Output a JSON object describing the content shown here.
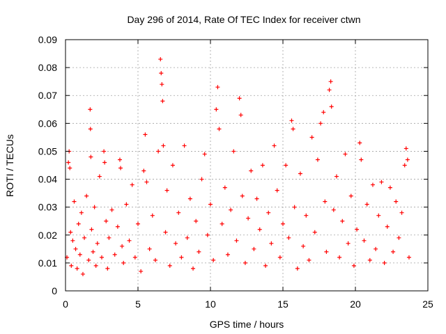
{
  "chart_data": {
    "type": "scatter",
    "title": "Day 296 of 2014, Rate Of TEC Index for receiver ctwn",
    "xlabel": "GPS time / hours",
    "ylabel": "ROTI / TECUs",
    "xlim": [
      0,
      25
    ],
    "ylim": [
      0,
      0.09
    ],
    "x_ticks": [
      0,
      5,
      10,
      15,
      20,
      25
    ],
    "x_tick_labels": [
      "0",
      "5",
      "10",
      "15",
      "20",
      "25"
    ],
    "y_ticks": [
      0,
      0.01,
      0.02,
      0.03,
      0.04,
      0.05,
      0.06,
      0.07,
      0.08,
      0.09
    ],
    "y_tick_labels": [
      "0",
      "0.01",
      "0.02",
      "0.03",
      "0.04",
      "0.05",
      "0.06",
      "0.07",
      "0.08",
      "0.09"
    ],
    "grid": true,
    "marker": "+",
    "color": "#ff0000",
    "series": [
      {
        "name": "ROTI",
        "points": [
          [
            0.1,
            0.012
          ],
          [
            0.2,
            0.046
          ],
          [
            0.25,
            0.05
          ],
          [
            0.3,
            0.044
          ],
          [
            0.35,
            0.021
          ],
          [
            0.4,
            0.009
          ],
          [
            0.5,
            0.018
          ],
          [
            0.6,
            0.032
          ],
          [
            0.7,
            0.015
          ],
          [
            0.8,
            0.008
          ],
          [
            0.9,
            0.024
          ],
          [
            1.0,
            0.013
          ],
          [
            1.1,
            0.028
          ],
          [
            1.2,
            0.006
          ],
          [
            1.3,
            0.019
          ],
          [
            1.45,
            0.034
          ],
          [
            1.6,
            0.011
          ],
          [
            1.7,
            0.065
          ],
          [
            1.72,
            0.058
          ],
          [
            1.75,
            0.048
          ],
          [
            1.8,
            0.022
          ],
          [
            1.9,
            0.014
          ],
          [
            2.0,
            0.03
          ],
          [
            2.1,
            0.009
          ],
          [
            2.2,
            0.017
          ],
          [
            2.35,
            0.041
          ],
          [
            2.5,
            0.012
          ],
          [
            2.65,
            0.05
          ],
          [
            2.7,
            0.046
          ],
          [
            2.8,
            0.025
          ],
          [
            2.9,
            0.008
          ],
          [
            3.0,
            0.019
          ],
          [
            3.2,
            0.029
          ],
          [
            3.4,
            0.013
          ],
          [
            3.6,
            0.023
          ],
          [
            3.75,
            0.047
          ],
          [
            3.8,
            0.044
          ],
          [
            3.9,
            0.016
          ],
          [
            4.0,
            0.01
          ],
          [
            4.2,
            0.031
          ],
          [
            4.4,
            0.018
          ],
          [
            4.6,
            0.038
          ],
          [
            4.8,
            0.012
          ],
          [
            5.0,
            0.024
          ],
          [
            5.2,
            0.007
          ],
          [
            5.4,
            0.043
          ],
          [
            5.5,
            0.056
          ],
          [
            5.6,
            0.039
          ],
          [
            5.8,
            0.015
          ],
          [
            6.0,
            0.027
          ],
          [
            6.2,
            0.011
          ],
          [
            6.4,
            0.05
          ],
          [
            6.55,
            0.083
          ],
          [
            6.6,
            0.078
          ],
          [
            6.65,
            0.074
          ],
          [
            6.7,
            0.068
          ],
          [
            6.75,
            0.052
          ],
          [
            6.9,
            0.021
          ],
          [
            7.0,
            0.036
          ],
          [
            7.2,
            0.009
          ],
          [
            7.4,
            0.045
          ],
          [
            7.6,
            0.017
          ],
          [
            7.8,
            0.028
          ],
          [
            8.0,
            0.012
          ],
          [
            8.2,
            0.052
          ],
          [
            8.4,
            0.019
          ],
          [
            8.6,
            0.033
          ],
          [
            8.8,
            0.008
          ],
          [
            9.0,
            0.025
          ],
          [
            9.2,
            0.014
          ],
          [
            9.4,
            0.04
          ],
          [
            9.6,
            0.049
          ],
          [
            9.8,
            0.02
          ],
          [
            10.0,
            0.031
          ],
          [
            10.2,
            0.011
          ],
          [
            10.4,
            0.065
          ],
          [
            10.5,
            0.073
          ],
          [
            10.6,
            0.058
          ],
          [
            10.8,
            0.024
          ],
          [
            11.0,
            0.037
          ],
          [
            11.2,
            0.013
          ],
          [
            11.4,
            0.029
          ],
          [
            11.6,
            0.05
          ],
          [
            11.8,
            0.018
          ],
          [
            12.0,
            0.069
          ],
          [
            12.1,
            0.063
          ],
          [
            12.2,
            0.034
          ],
          [
            12.4,
            0.01
          ],
          [
            12.6,
            0.026
          ],
          [
            12.8,
            0.043
          ],
          [
            13.0,
            0.015
          ],
          [
            13.2,
            0.033
          ],
          [
            13.4,
            0.022
          ],
          [
            13.6,
            0.045
          ],
          [
            13.8,
            0.009
          ],
          [
            14.0,
            0.028
          ],
          [
            14.2,
            0.017
          ],
          [
            14.4,
            0.052
          ],
          [
            14.6,
            0.036
          ],
          [
            14.8,
            0.012
          ],
          [
            15.0,
            0.024
          ],
          [
            15.2,
            0.045
          ],
          [
            15.4,
            0.019
          ],
          [
            15.6,
            0.061
          ],
          [
            15.7,
            0.058
          ],
          [
            15.8,
            0.03
          ],
          [
            16.0,
            0.008
          ],
          [
            16.2,
            0.042
          ],
          [
            16.4,
            0.016
          ],
          [
            16.6,
            0.027
          ],
          [
            16.8,
            0.011
          ],
          [
            17.0,
            0.055
          ],
          [
            17.2,
            0.021
          ],
          [
            17.4,
            0.047
          ],
          [
            17.6,
            0.06
          ],
          [
            17.8,
            0.064
          ],
          [
            17.9,
            0.032
          ],
          [
            18.0,
            0.014
          ],
          [
            18.2,
            0.072
          ],
          [
            18.3,
            0.075
          ],
          [
            18.35,
            0.066
          ],
          [
            18.5,
            0.029
          ],
          [
            18.7,
            0.041
          ],
          [
            18.9,
            0.012
          ],
          [
            19.1,
            0.025
          ],
          [
            19.3,
            0.049
          ],
          [
            19.5,
            0.017
          ],
          [
            19.7,
            0.034
          ],
          [
            19.9,
            0.009
          ],
          [
            20.1,
            0.022
          ],
          [
            20.3,
            0.053
          ],
          [
            20.4,
            0.047
          ],
          [
            20.6,
            0.018
          ],
          [
            20.8,
            0.031
          ],
          [
            21.0,
            0.011
          ],
          [
            21.2,
            0.038
          ],
          [
            21.4,
            0.015
          ],
          [
            21.6,
            0.027
          ],
          [
            21.8,
            0.039
          ],
          [
            22.0,
            0.01
          ],
          [
            22.2,
            0.023
          ],
          [
            22.4,
            0.037
          ],
          [
            22.6,
            0.014
          ],
          [
            22.8,
            0.032
          ],
          [
            23.0,
            0.019
          ],
          [
            23.2,
            0.028
          ],
          [
            23.4,
            0.045
          ],
          [
            23.5,
            0.051
          ],
          [
            23.6,
            0.047
          ],
          [
            23.7,
            0.012
          ]
        ]
      }
    ]
  }
}
